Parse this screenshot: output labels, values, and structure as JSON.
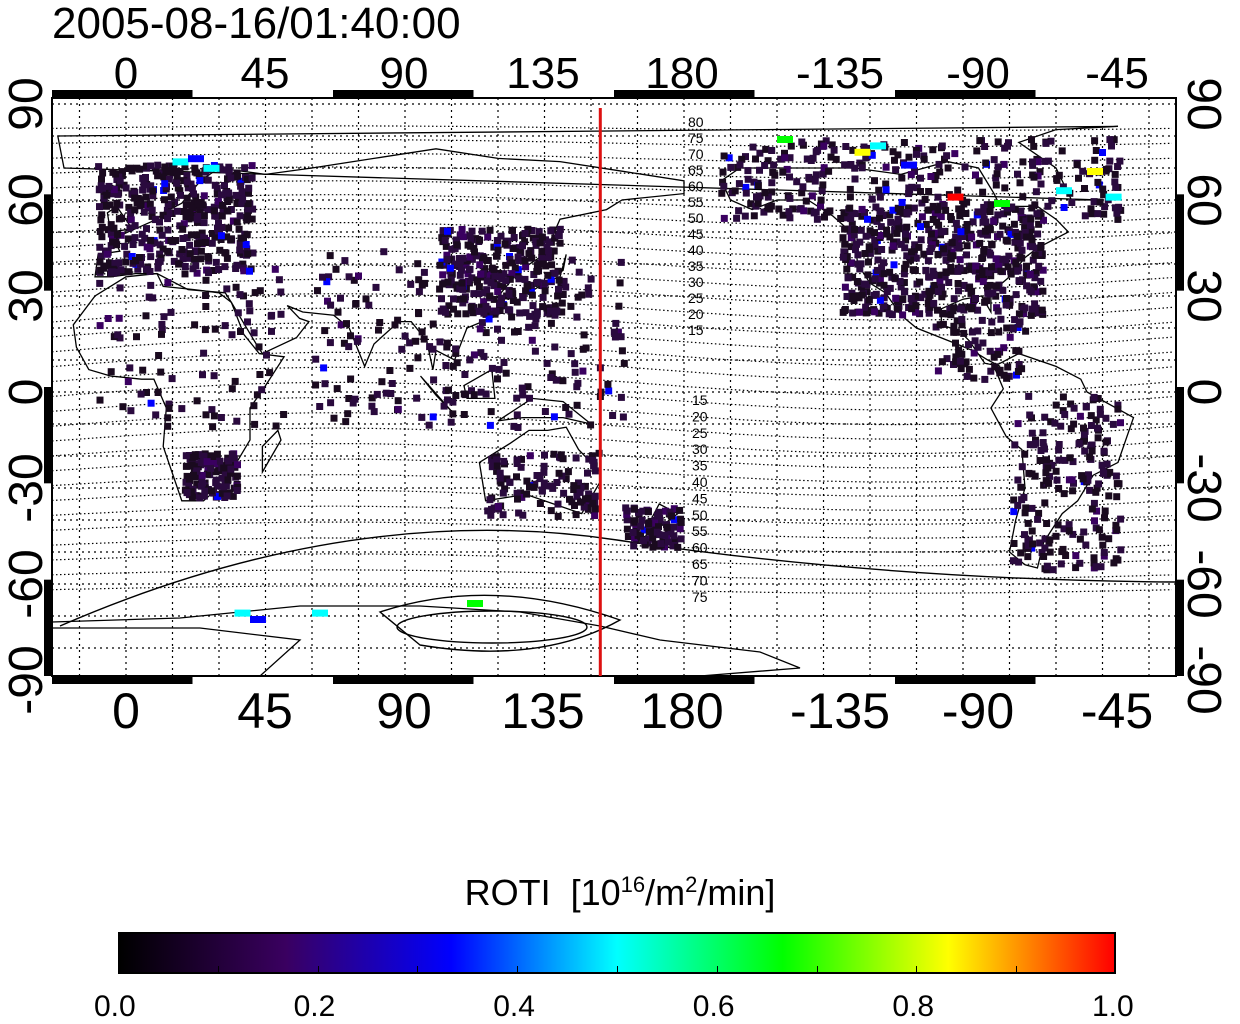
{
  "title": "2005-08-16/01:40:00",
  "map": {
    "lon_ticks": [
      "0",
      "45",
      "90",
      "135",
      "180",
      "-135",
      "-90",
      "-45"
    ],
    "lat_ticks": [
      "90",
      "60",
      "30",
      "0",
      "-30",
      "-60",
      "-90"
    ],
    "marker_longitude": 153,
    "marker_color": "#dd1111",
    "contour_labels_north": [
      "80",
      "75",
      "70",
      "65",
      "60",
      "55",
      "50",
      "45",
      "40",
      "35",
      "30",
      "25",
      "20",
      "15"
    ],
    "contour_labels_south": [
      "15",
      "20",
      "25",
      "30",
      "35",
      "40",
      "45",
      "50",
      "55",
      "60",
      "65",
      "70",
      "75"
    ],
    "grid": true
  },
  "colorbar": {
    "label": "ROTI",
    "unit_base": "[10",
    "unit_exp": "16",
    "unit_mid": "/m",
    "unit_exp2": "2",
    "unit_tail": "/min]",
    "ticks": [
      "0.0",
      "0.2",
      "0.4",
      "0.6",
      "0.8",
      "1.0"
    ],
    "min": 0.0,
    "max": 1.0
  },
  "colors": {
    "low": "#1a0a1f",
    "scale": [
      "#000000",
      "#3a0060",
      "#0000ff",
      "#00ffff",
      "#00ff00",
      "#ffff00",
      "#ff0000"
    ]
  }
}
